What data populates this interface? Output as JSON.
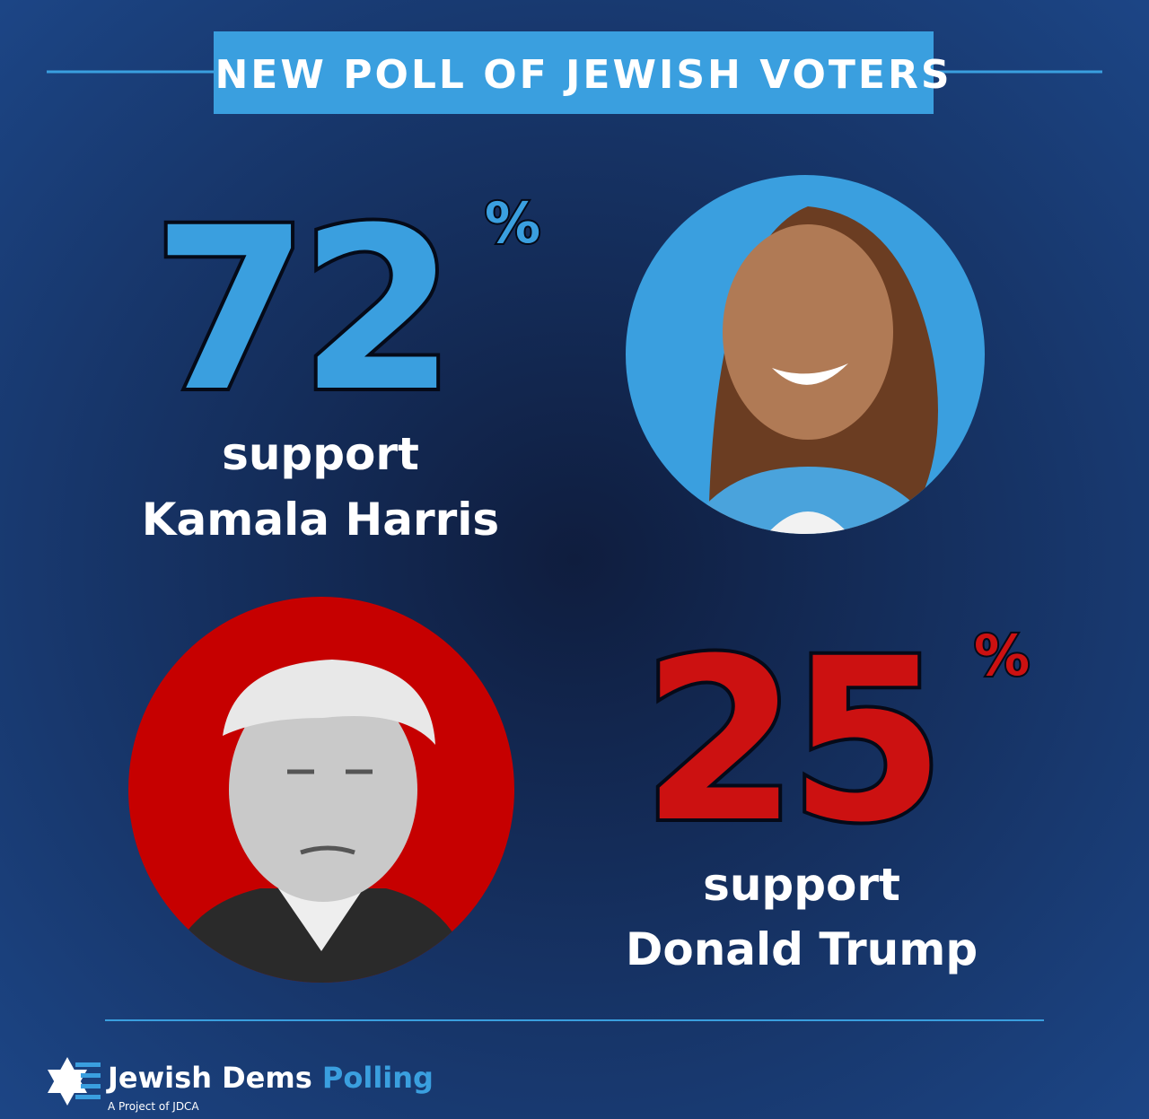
{
  "header": {
    "title": "NEW POLL OF JEWISH VOTERS"
  },
  "results": [
    {
      "value": 72,
      "unit": "%",
      "lines": [
        "support",
        "Kamala Harris"
      ]
    },
    {
      "value": 25,
      "unit": "%",
      "lines": [
        "support",
        "Donald Trump"
      ]
    }
  ],
  "footer": {
    "brand": "Jewish Dems",
    "brand_accent": "Polling",
    "tagline": "A Project of JDCA"
  }
}
